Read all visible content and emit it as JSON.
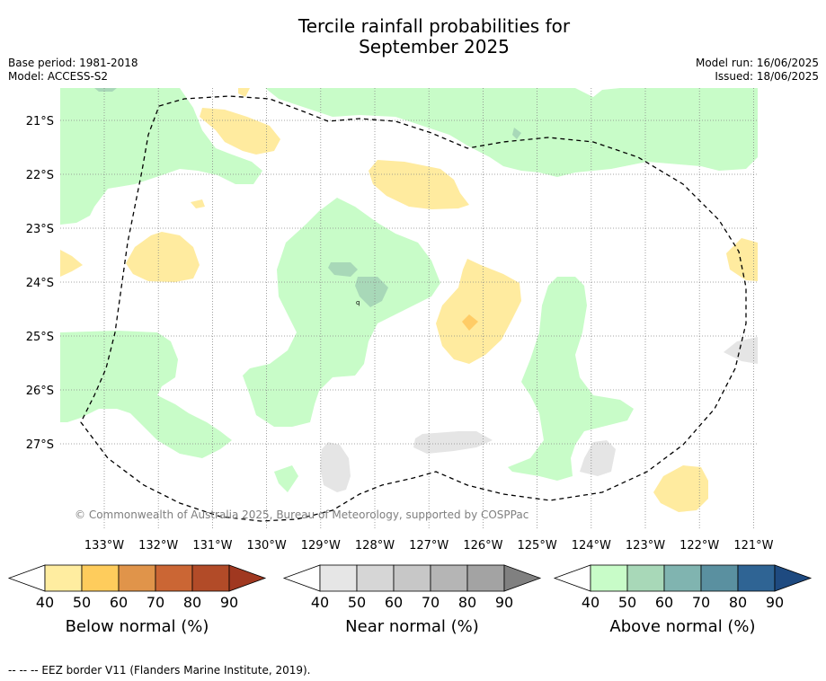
{
  "title": {
    "line1": "Tercile rainfall probabilities for",
    "line2": "September 2025"
  },
  "meta": {
    "base_period": "Base period: 1981-2018",
    "model": "Model: ACCESS-S2",
    "model_run": "Model run: 16/06/2025",
    "issued": "Issued: 18/06/2025"
  },
  "map": {
    "lat_labels": [
      "21°S",
      "22°S",
      "23°S",
      "24°S",
      "25°S",
      "26°S",
      "27°S"
    ],
    "lon_labels": [
      "133°W",
      "132°W",
      "131°W",
      "130°W",
      "129°W",
      "128°W",
      "127°W",
      "126°W",
      "125°W",
      "124°W",
      "123°W",
      "122°W",
      "121°W"
    ],
    "copyright": "© Commonwealth of Australia 2025, Bureau of Meteorology, supported by COSPPac",
    "colors": {
      "above40": "#c8fcc8",
      "above50": "#a8d8b8",
      "below40": "#ffeb9f",
      "below50": "#ffcc66",
      "near40": "#e5e5e5"
    }
  },
  "colorbars": [
    {
      "label": "Below normal (%)",
      "ticks": [
        "40",
        "50",
        "60",
        "70",
        "80",
        "90"
      ],
      "colors": [
        "#ffeda0",
        "#fecc5c",
        "#e0944a",
        "#cb6634",
        "#b24b28",
        "#a03820"
      ]
    },
    {
      "label": "Near normal (%)",
      "ticks": [
        "40",
        "50",
        "60",
        "70",
        "80",
        "90"
      ],
      "colors": [
        "#e6e6e6",
        "#d6d6d6",
        "#c7c7c7",
        "#b5b5b5",
        "#a3a3a3",
        "#808080"
      ]
    },
    {
      "label": "Above normal (%)",
      "ticks": [
        "40",
        "50",
        "60",
        "70",
        "80",
        "90"
      ],
      "colors": [
        "#c8fcc8",
        "#a8d8b8",
        "#80b4b0",
        "#5a90a0",
        "#2f6494",
        "#1e4a80"
      ]
    }
  ],
  "footer": "--  --  -- EEZ border V11 (Flanders Marine Institute, 2019)."
}
